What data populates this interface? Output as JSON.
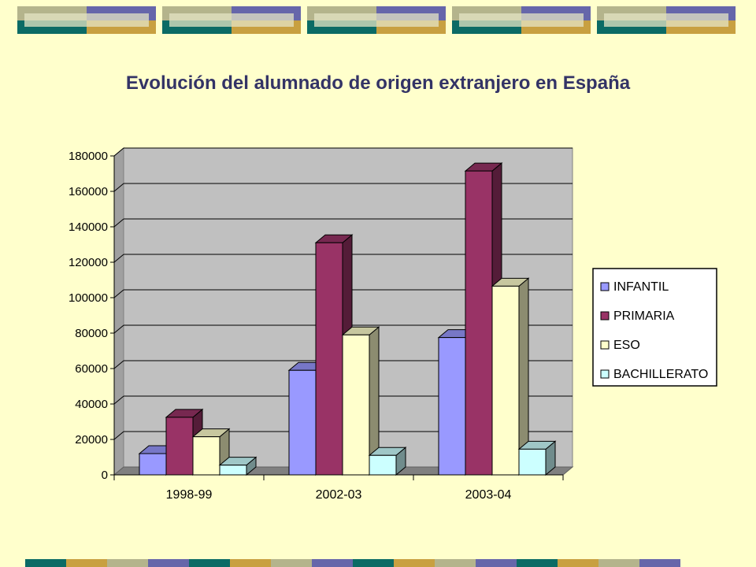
{
  "title": "Evolución del alumnado de origen extranjero en España",
  "colors": {
    "background": "#ffffcc",
    "title": "#333366",
    "plot_wall": "#c0c0c0",
    "deco_teal": "#0b6b65",
    "deco_blue": "#6666aa",
    "deco_olive": "#b4b48c",
    "deco_gold": "#c8a040"
  },
  "chart_data": {
    "type": "bar",
    "style": "3d-clustered-column",
    "categories": [
      "1998-99",
      "2002-03",
      "2003-04"
    ],
    "series": [
      {
        "name": "INFANTIL",
        "color": "#9999ff",
        "values": [
          12000,
          59000,
          77500
        ]
      },
      {
        "name": "PRIMARIA",
        "color": "#993366",
        "values": [
          32500,
          131000,
          171500
        ]
      },
      {
        "name": "ESO",
        "color": "#ffffcc",
        "values": [
          21500,
          79000,
          106500
        ]
      },
      {
        "name": "BACHILLERATO",
        "color": "#ccffff",
        "values": [
          5500,
          11000,
          14500
        ]
      }
    ],
    "ylim": [
      0,
      180000
    ],
    "yticks": [
      "0",
      "20000",
      "40000",
      "60000",
      "80000",
      "100000",
      "120000",
      "140000",
      "160000",
      "180000"
    ],
    "grid": true,
    "legend_position": "right"
  }
}
